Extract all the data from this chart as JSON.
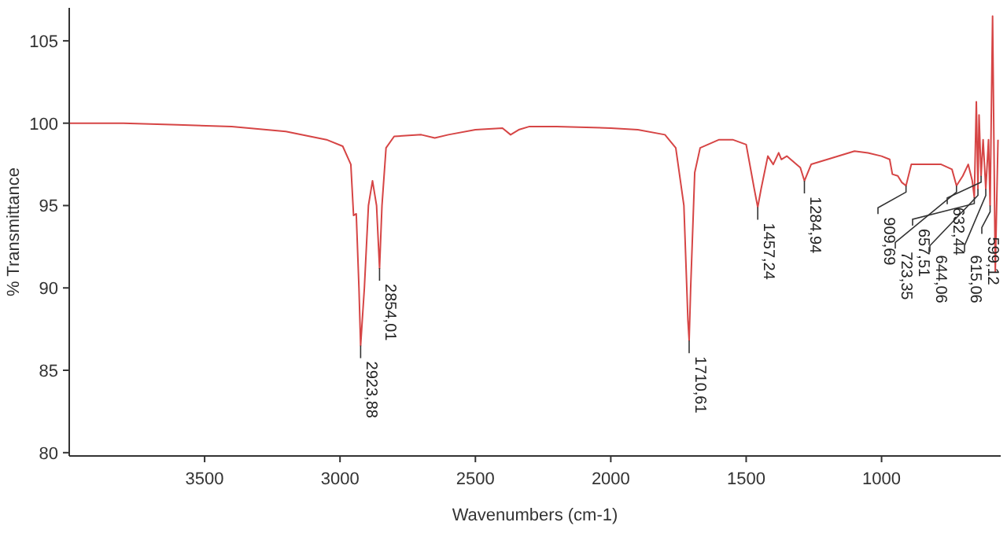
{
  "chart_data": {
    "type": "line",
    "xlabel": "Wavenumbers (cm-1)",
    "ylabel": "% Transmittance",
    "xlim": [
      4000,
      560
    ],
    "ylim": [
      79.8,
      107
    ],
    "xticks": [
      3500,
      3000,
      2500,
      2000,
      1500,
      1000
    ],
    "yticks": [
      80,
      85,
      90,
      95,
      100,
      105
    ],
    "grid": false,
    "marker": "none",
    "line_style": "solid",
    "series": [
      {
        "color": "#d64545",
        "x": [
          4000,
          3800,
          3600,
          3400,
          3200,
          3050,
          2990,
          2960,
          2950,
          2940,
          2930,
          2923.88,
          2910,
          2895,
          2880,
          2865,
          2854.01,
          2845,
          2830,
          2800,
          2700,
          2650,
          2600,
          2500,
          2400,
          2370,
          2340,
          2300,
          2200,
          2000,
          1900,
          1800,
          1760,
          1730,
          1715,
          1710.61,
          1705,
          1690,
          1670,
          1600,
          1550,
          1500,
          1470,
          1457.24,
          1445,
          1420,
          1400,
          1380,
          1370,
          1350,
          1300,
          1284.94,
          1260,
          1200,
          1100,
          1050,
          1000,
          970,
          960,
          940,
          925,
          909.69,
          890,
          850,
          780,
          740,
          723.35,
          700,
          680,
          665,
          657.51,
          650,
          644.06,
          640,
          632.44,
          625,
          615.06,
          605,
          599.12,
          590,
          580,
          570
        ],
        "values": [
          100.0,
          100.0,
          99.9,
          99.8,
          99.5,
          99.0,
          98.6,
          97.5,
          94.4,
          94.5,
          90,
          86.5,
          90,
          95,
          96.5,
          95,
          91.2,
          95,
          98.5,
          99.2,
          99.3,
          99.1,
          99.3,
          99.6,
          99.7,
          99.3,
          99.6,
          99.8,
          99.8,
          99.7,
          99.6,
          99.3,
          98.5,
          95,
          88,
          86.8,
          90,
          97,
          98.5,
          99.0,
          99.0,
          98.7,
          96,
          94.9,
          96,
          98,
          97.5,
          98.2,
          97.8,
          98,
          97.3,
          96.5,
          97.5,
          97.8,
          98.3,
          98.2,
          98,
          97.8,
          96.9,
          96.8,
          96.4,
          96.2,
          97.5,
          97.5,
          97.5,
          97.2,
          96.2,
          96.8,
          97.5,
          96.5,
          95.5,
          101.3,
          96,
          100.5,
          96.8,
          99,
          96,
          99,
          95,
          106.5,
          91,
          99
        ]
      }
    ],
    "annotations": [
      {
        "text": "2923,88",
        "x": 2923.88,
        "y": 86.5
      },
      {
        "text": "2854,01",
        "x": 2854.01,
        "y": 91.2
      },
      {
        "text": "1710,61",
        "x": 1710.61,
        "y": 86.8
      },
      {
        "text": "1457,24",
        "x": 1457.24,
        "y": 94.9
      },
      {
        "text": "1284,94",
        "x": 1284.94,
        "y": 96.5
      },
      {
        "text": "909,69",
        "x": 909.69,
        "y": 96.2
      },
      {
        "text": "723,35",
        "x": 723.35,
        "y": 96.2
      },
      {
        "text": "657,51",
        "x": 657.51,
        "y": 95.5
      },
      {
        "text": "644,06",
        "x": 644.06,
        "y": 96
      },
      {
        "text": "632,44",
        "x": 632.44,
        "y": 96.8
      },
      {
        "text": "615,06",
        "x": 615.06,
        "y": 96
      },
      {
        "text": "599,12",
        "x": 599.12,
        "y": 95
      }
    ]
  }
}
